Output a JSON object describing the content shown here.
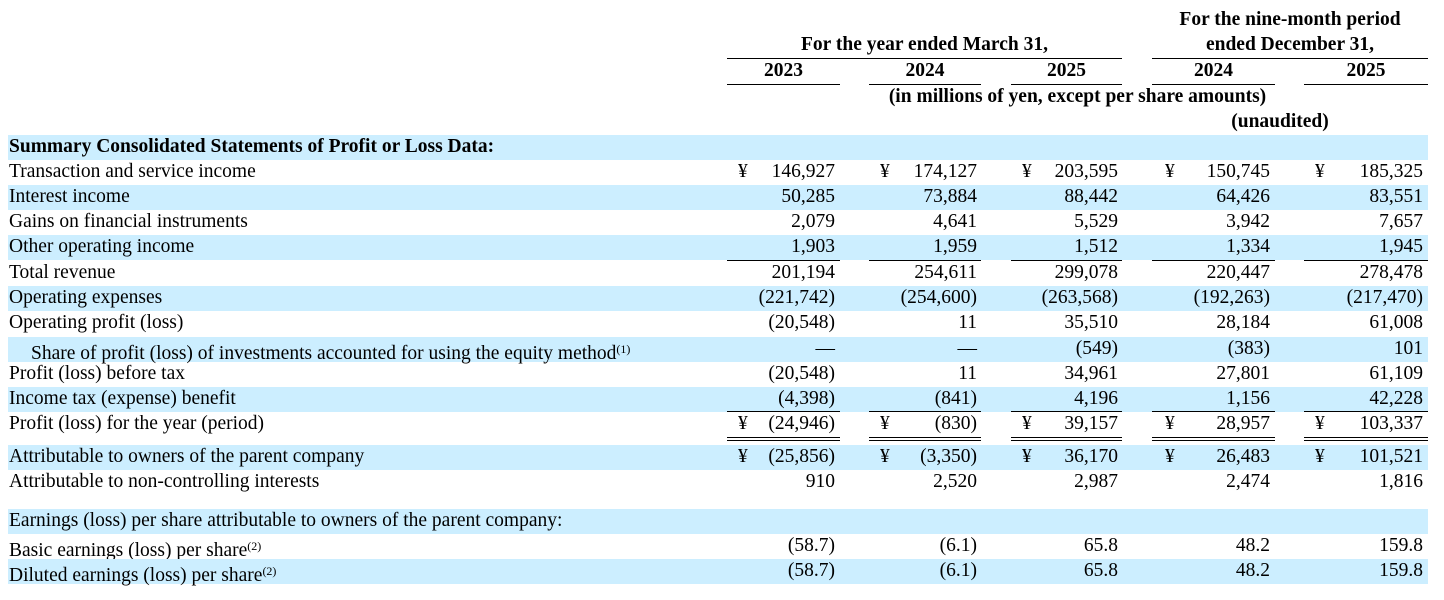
{
  "header": {
    "year_group": "For the year ended March 31,",
    "period_group": [
      "For the nine-month period",
      "ended December 31,"
    ],
    "years": [
      "2023",
      "2024",
      "2025",
      "2024",
      "2025"
    ],
    "units": "(in millions of yen, except per share amounts)",
    "unaudited": "(unaudited)"
  },
  "table": {
    "rows": [
      {
        "label": "Summary Consolidated Statements of Profit or Loss Data:",
        "bold": true
      },
      {
        "label": "Transaction and service income",
        "currency": "¥",
        "values": [
          "146,927",
          "174,127",
          "203,595",
          "150,745",
          "185,325"
        ]
      },
      {
        "label": "Interest income",
        "values": [
          "50,285",
          "73,884",
          "88,442",
          "64,426",
          "83,551"
        ]
      },
      {
        "label": "Gains on financial instruments",
        "values": [
          "2,079",
          "4,641",
          "5,529",
          "3,942",
          "7,657"
        ]
      },
      {
        "label": "Other operating income",
        "values": [
          "1,903",
          "1,959",
          "1,512",
          "1,334",
          "1,945"
        ]
      },
      {
        "label": "Total revenue",
        "values": [
          "201,194",
          "254,611",
          "299,078",
          "220,447",
          "278,478"
        ]
      },
      {
        "label": "Operating expenses",
        "values": [
          "(221,742)",
          "(254,600)",
          "(263,568)",
          "(192,263)",
          "(217,470)"
        ]
      },
      {
        "label": "Operating profit (loss)",
        "values": [
          "(20,548)",
          "11",
          "35,510",
          "28,184",
          "61,008"
        ]
      },
      {
        "label": "Share of profit (loss) of investments accounted for using the equity method",
        "note": "(1)",
        "indent": true,
        "values": [
          "—",
          "—",
          "(549)",
          "(383)",
          "101"
        ]
      },
      {
        "label": "Profit (loss) before tax",
        "values": [
          "(20,548)",
          "11",
          "34,961",
          "27,801",
          "61,109"
        ]
      },
      {
        "label": "Income tax (expense) benefit",
        "values": [
          "(4,398)",
          "(841)",
          "4,196",
          "1,156",
          "42,228"
        ]
      },
      {
        "label": "Profit (loss) for the year (period)",
        "currency": "¥",
        "values": [
          "(24,946)",
          "(830)",
          "39,157",
          "28,957",
          "103,337"
        ]
      },
      {
        "label": "Attributable to owners of the parent company",
        "currency": "¥",
        "values": [
          "(25,856)",
          "(3,350)",
          "36,170",
          "26,483",
          "101,521"
        ]
      },
      {
        "label": "Attributable to non-controlling interests",
        "values": [
          "910",
          "2,520",
          "2,987",
          "2,474",
          "1,816"
        ]
      },
      {
        "label": "Earnings (loss) per share attributable to owners of the parent company:"
      },
      {
        "label": "Basic earnings (loss) per share",
        "note": "(2)",
        "values": [
          "(58.7)",
          "(6.1)",
          "65.8",
          "48.2",
          "159.8"
        ]
      },
      {
        "label": "Diluted earnings (loss) per share",
        "note": "(2)",
        "values": [
          "(58.7)",
          "(6.1)",
          "65.8",
          "48.2",
          "159.8"
        ]
      }
    ]
  }
}
